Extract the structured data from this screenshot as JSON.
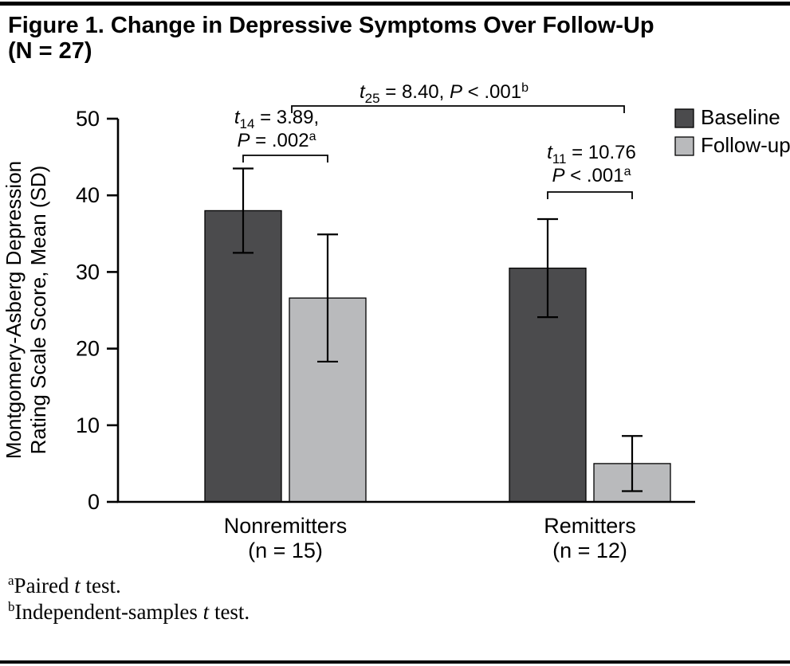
{
  "figure": {
    "title_line1": "Figure 1. Change in Depressive Symptoms Over Follow-Up",
    "title_line2": "(N = 27)"
  },
  "chart_data": {
    "type": "bar",
    "title": "Figure 1. Change in Depressive Symptoms Over Follow-Up (N = 27)",
    "xlabel": "",
    "ylabel": "Montgomery-Asberg Depression Rating Scale Score, Mean (SD)",
    "ylabel_lines": [
      "Montgomery-Asberg Depression",
      "Rating Scale Score, Mean (SD)"
    ],
    "ylim": [
      0,
      50
    ],
    "yticks": [
      0,
      10,
      20,
      30,
      40,
      50
    ],
    "grid": false,
    "legend_position": "top-right",
    "groups": [
      {
        "label": "Nonremitters",
        "sublabel": "(n = 15)"
      },
      {
        "label": "Remitters",
        "sublabel": "(n = 12)"
      }
    ],
    "series": [
      {
        "name": "Baseline",
        "color": "#4b4b4d",
        "values": [
          38,
          30.5
        ],
        "sd": [
          5.5,
          6.4
        ]
      },
      {
        "name": "Follow-up",
        "color": "#b9babc",
        "values": [
          26.6,
          5
        ],
        "sd": [
          8.3,
          3.6
        ]
      }
    ],
    "annotations": [
      {
        "id": "paired-nonremitters",
        "stat": "t",
        "df": "14",
        "stat_value": "3.89",
        "trail": ",",
        "p_label": "P",
        "p_rel": "=",
        "p_value": ".002",
        "note": "a",
        "two_line": true,
        "connects": [
          [
            0,
            0
          ],
          [
            0,
            1
          ]
        ]
      },
      {
        "id": "between-groups",
        "stat": "t",
        "df": "25",
        "stat_value": "8.40",
        "trail": ",",
        "p_label": "P",
        "p_rel": "<",
        "p_value": ".001",
        "note": "b",
        "two_line": false,
        "connects": [
          [
            0,
            1
          ],
          [
            1,
            1
          ]
        ]
      },
      {
        "id": "paired-remitters",
        "stat": "t",
        "df": "11",
        "stat_value": "10.76",
        "trail": "",
        "p_label": "P",
        "p_rel": "<",
        "p_value": ".001",
        "note": "a",
        "two_line": true,
        "connects": [
          [
            1,
            0
          ],
          [
            1,
            1
          ]
        ]
      }
    ]
  },
  "footnotes": [
    {
      "sup": "a",
      "pre": "Paired ",
      "italic": "t",
      "post": " test."
    },
    {
      "sup": "b",
      "pre": "Independent-samples ",
      "italic": "t",
      "post": " test."
    }
  ]
}
